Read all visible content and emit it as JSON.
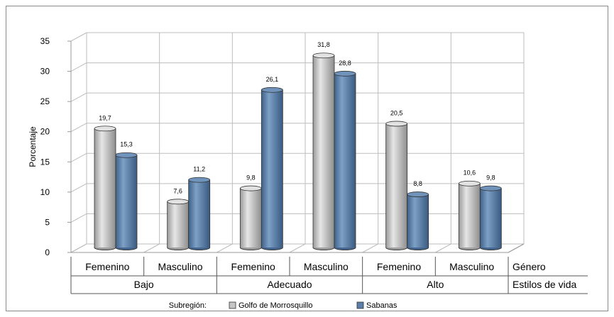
{
  "chart_data": {
    "type": "bar",
    "style": "3d-cylinder",
    "ylabel": "Porcentaje",
    "ylim": [
      0,
      35
    ],
    "yticks": [
      0,
      5,
      10,
      15,
      20,
      25,
      30,
      35
    ],
    "grid": true,
    "categories": [
      {
        "group": "Bajo",
        "genero": "Femenino"
      },
      {
        "group": "Bajo",
        "genero": "Masculino"
      },
      {
        "group": "Adecuado",
        "genero": "Femenino"
      },
      {
        "group": "Adecuado",
        "genero": "Masculino"
      },
      {
        "group": "Alto",
        "genero": "Femenino"
      },
      {
        "group": "Alto",
        "genero": "Masculino"
      }
    ],
    "category_labels": [
      "Femenino",
      "Masculino",
      "Femenino",
      "Masculino",
      "Femenino",
      "Masculino"
    ],
    "groups": [
      "Bajo",
      "Adecuado",
      "Alto"
    ],
    "row_labels": {
      "genero": "Género",
      "estilos": "Estilos de vida"
    },
    "series": [
      {
        "name": "Golfo de Morrosquillo",
        "color": "#c6c6c6",
        "values": [
          19.7,
          7.6,
          9.8,
          31.8,
          20.5,
          10.6
        ]
      },
      {
        "name": "Sabanas",
        "color": "#5b7fa8",
        "values": [
          15.3,
          11.2,
          26.1,
          28.8,
          8.8,
          9.8
        ]
      }
    ],
    "data_labels": [
      [
        "19,7",
        "7,6",
        "9,8",
        "31,8",
        "20,5",
        "10,6"
      ],
      [
        "15,3",
        "11,2",
        "26,1",
        "28,8",
        "8,8",
        "9,8"
      ]
    ],
    "legend": {
      "title": "Subregión:",
      "placement": "bottom"
    }
  }
}
